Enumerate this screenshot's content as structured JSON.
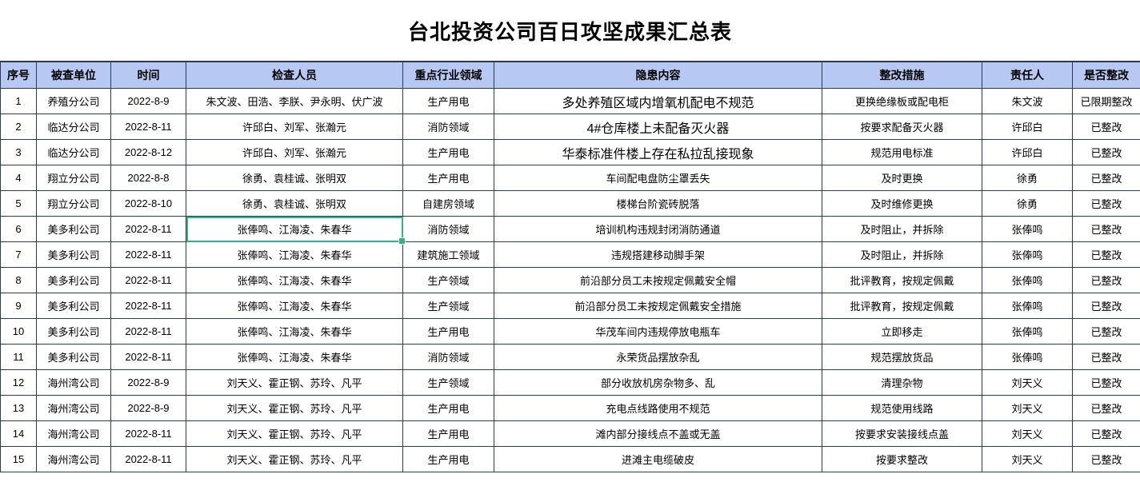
{
  "title": "台北投资公司百日攻坚成果汇总表",
  "columns": [
    "序号",
    "被查单位",
    "时间",
    "检查人员",
    "重点行业领域",
    "隐患内容",
    "整改措施",
    "责任人",
    "是否整改"
  ],
  "rows": [
    [
      "1",
      "养殖分公司",
      "2022-8-9",
      "朱文波、田浩、李朕、尹永明、伏广波",
      "生产用电",
      "多处养殖区域内增氧机配电不规范",
      "更换绝缘板或配电柜",
      "朱文波",
      "已限期整改"
    ],
    [
      "2",
      "临达分公司",
      "2022-8-11",
      "许邱白、刘军、张瀚元",
      "消防领域",
      "4#仓库楼上未配备灭火器",
      "按要求配备灭火器",
      "许邱白",
      "已整改"
    ],
    [
      "3",
      "临达分公司",
      "2022-8-12",
      "许邱白、刘军、张瀚元",
      "生产用电",
      "华泰标准件楼上存在私拉乱接现象",
      "规范用电标准",
      "许邱白",
      "已整改"
    ],
    [
      "4",
      "翔立分公司",
      "2022-8-8",
      "徐勇、袁桂诚、张明双",
      "生产用电",
      "车间配电盘防尘罩丢失",
      "及时更换",
      "徐勇",
      "已整改"
    ],
    [
      "5",
      "翔立分公司",
      "2022-8-10",
      "徐勇、袁桂诚、张明双",
      "自建房领域",
      "楼梯台阶瓷砖脱落",
      "及时维修更换",
      "徐勇",
      "已整改"
    ],
    [
      "6",
      "美多利公司",
      "2022-8-11",
      "张俸鸣、江海凌、朱春华",
      "消防领域",
      "培训机构违规封闭消防通道",
      "及时阻止，并拆除",
      "张俸鸣",
      "已整改"
    ],
    [
      "7",
      "美多利公司",
      "2022-8-11",
      "张俸鸣、江海凌、朱春华",
      "建筑施工领域",
      "违规搭建移动脚手架",
      "及时阻止，并拆除",
      "张俸鸣",
      "已整改"
    ],
    [
      "8",
      "美多利公司",
      "2022-8-11",
      "张俸鸣、江海凌、朱春华",
      "生产领域",
      "前沿部分员工未按规定佩戴安全帽",
      "批评教育，按规定佩戴",
      "张俸鸣",
      "已整改"
    ],
    [
      "9",
      "美多利公司",
      "2022-8-11",
      "张俸鸣、江海凌、朱春华",
      "生产领域",
      "前沿部分员工未按规定佩戴安全措施",
      "批评教育，按规定佩戴",
      "张俸鸣",
      "已整改"
    ],
    [
      "10",
      "美多利公司",
      "2022-8-11",
      "张俸鸣、江海凌、朱春华",
      "生产用电",
      "华茂车间内违规停放电瓶车",
      "立即移走",
      "张俸鸣",
      "已整改"
    ],
    [
      "11",
      "美多利公司",
      "2022-8-11",
      "张俸鸣、江海凌、朱春华",
      "消防领域",
      "永荣货品摆放杂乱",
      "规范摆放货品",
      "张俸鸣",
      "已整改"
    ],
    [
      "12",
      "海州湾公司",
      "2022-8-9",
      "刘天义、霍正钢、苏玲、凡平",
      "生产领域",
      "部分收放机房杂物多、乱",
      "清理杂物",
      "刘天义",
      "已整改"
    ],
    [
      "13",
      "海州湾公司",
      "2022-8-9",
      "刘天义、霍正钢、苏玲、凡平",
      "生产用电",
      "充电点线路使用不规范",
      "规范使用线路",
      "刘天义",
      "已整改"
    ],
    [
      "14",
      "海州湾公司",
      "2022-8-11",
      "刘天义、霍正钢、苏玲、凡平",
      "生产用电",
      "滩内部分接线点不盖或无盖",
      "按要求安装接线点盖",
      "刘天义",
      "已整改"
    ],
    [
      "15",
      "海州湾公司",
      "2022-8-11",
      "刘天义、霍正钢、苏玲、凡平",
      "生产用电",
      "进滩主电缆破皮",
      "按要求整改",
      "刘天义",
      "已整改"
    ]
  ],
  "selection": {
    "row": 6,
    "col_index": 3,
    "column_label": "检查人员",
    "value": "张俸鸣、江海凌、朱春华"
  },
  "colors": {
    "header_bg": "#B7C9F2",
    "grid": "#2B3A55",
    "selection_green": "#34B283"
  }
}
